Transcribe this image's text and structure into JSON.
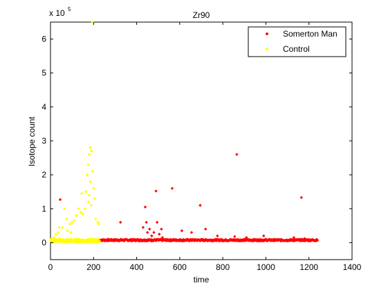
{
  "chart_data": {
    "type": "scatter",
    "title": "Zr90",
    "xlabel": "time",
    "ylabel": "Isotope count",
    "y_exponent_label": "x 10",
    "y_exponent_power": "5",
    "xlim": [
      0,
      1400
    ],
    "ylim": [
      -0.5,
      6.5
    ],
    "x_ticks": [
      0,
      200,
      400,
      600,
      800,
      1000,
      1200,
      1400
    ],
    "y_ticks": [
      0,
      1,
      2,
      3,
      4,
      5,
      6
    ],
    "grid": false,
    "legend_position": "top-right",
    "legend": [
      {
        "name": "Somerton Man",
        "color": "#ff0000",
        "marker": "diamond"
      },
      {
        "name": "Control",
        "color": "#ffff00",
        "marker": "diamond"
      }
    ],
    "series": [
      {
        "name": "Somerton Man",
        "color": "#ff0000",
        "baseline": {
          "x_start": 230,
          "x_end": 1240,
          "y_level": 0.07,
          "jitter": 0.05
        },
        "points": [
          [
            45,
            1.27
          ],
          [
            440,
            1.05
          ],
          [
            490,
            1.52
          ],
          [
            565,
            1.6
          ],
          [
            695,
            1.1
          ],
          [
            865,
            2.6
          ],
          [
            1165,
            1.33
          ],
          [
            325,
            0.6
          ],
          [
            430,
            0.45
          ],
          [
            445,
            0.6
          ],
          [
            450,
            0.3
          ],
          [
            460,
            0.4
          ],
          [
            470,
            0.2
          ],
          [
            480,
            0.3
          ],
          [
            495,
            0.6
          ],
          [
            505,
            0.25
          ],
          [
            515,
            0.4
          ],
          [
            520,
            0.15
          ],
          [
            610,
            0.35
          ],
          [
            655,
            0.3
          ],
          [
            720,
            0.4
          ],
          [
            775,
            0.2
          ],
          [
            855,
            0.18
          ],
          [
            910,
            0.15
          ],
          [
            990,
            0.2
          ],
          [
            1130,
            0.15
          ],
          [
            1180,
            0.12
          ]
        ]
      },
      {
        "name": "Control",
        "color": "#ffff00",
        "baseline": {
          "x_start": 0,
          "x_end": 230,
          "y_level": 0.05,
          "jitter": 0.1
        },
        "points": [
          [
            195,
            6.5
          ],
          [
            185,
            2.8
          ],
          [
            190,
            2.7
          ],
          [
            180,
            2.6
          ],
          [
            175,
            2.3
          ],
          [
            195,
            2.1
          ],
          [
            170,
            2.0
          ],
          [
            185,
            1.8
          ],
          [
            200,
            1.6
          ],
          [
            165,
            1.5
          ],
          [
            180,
            1.4
          ],
          [
            145,
            1.45
          ],
          [
            175,
            1.2
          ],
          [
            190,
            1.1
          ],
          [
            160,
            1.0
          ],
          [
            130,
            1.0
          ],
          [
            140,
            0.9
          ],
          [
            150,
            0.85
          ],
          [
            120,
            0.8
          ],
          [
            110,
            0.65
          ],
          [
            100,
            0.6
          ],
          [
            90,
            0.55
          ],
          [
            75,
            0.7
          ],
          [
            55,
            0.45
          ],
          [
            40,
            0.45
          ],
          [
            65,
            1.0
          ],
          [
            210,
            0.7
          ],
          [
            220,
            0.6
          ],
          [
            225,
            0.55
          ],
          [
            205,
            1.3
          ],
          [
            35,
            0.3
          ],
          [
            25,
            0.25
          ],
          [
            15,
            0.15
          ],
          [
            80,
            0.35
          ],
          [
            95,
            0.3
          ]
        ]
      }
    ]
  }
}
